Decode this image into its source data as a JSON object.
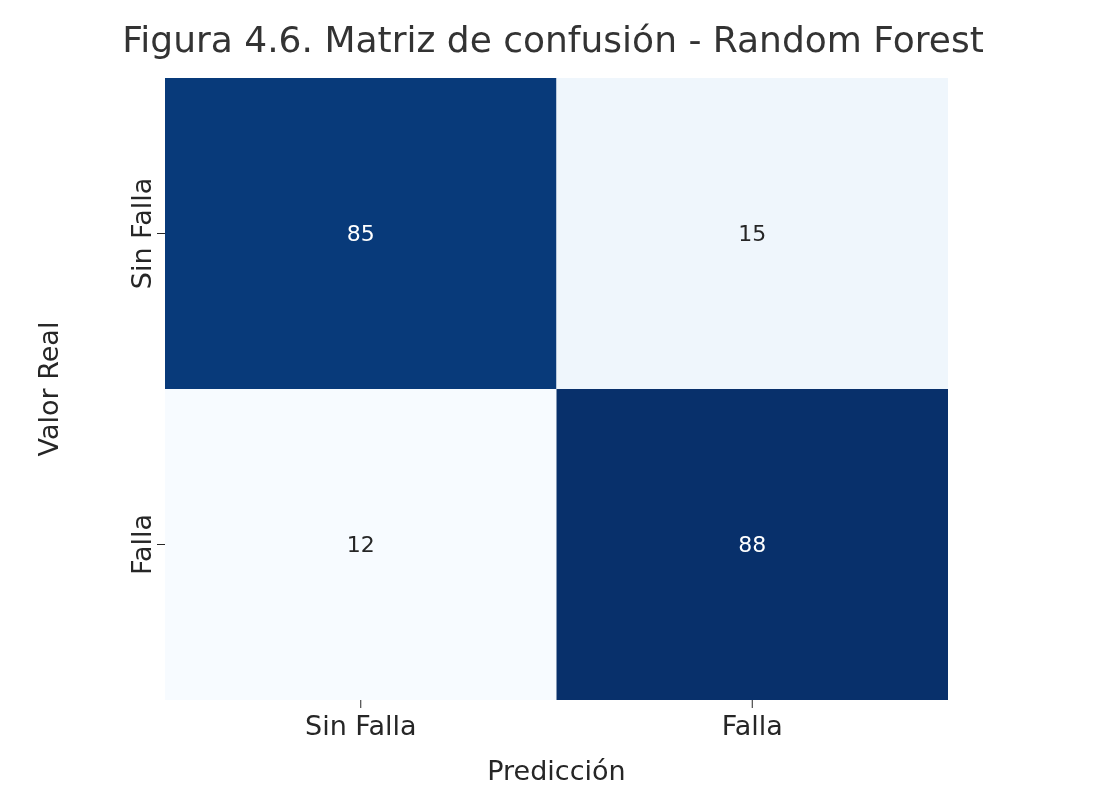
{
  "chart_data": {
    "type": "heatmap",
    "title": "Figura 4.6. Matriz de confusión - Random Forest",
    "xlabel": "Predicción",
    "ylabel": "Valor Real",
    "categories": [
      "Sin Falla",
      "Falla"
    ],
    "y_categories": [
      "Sin Falla",
      "Falla"
    ],
    "cells": [
      [
        85,
        15
      ],
      [
        12,
        88
      ]
    ],
    "data_labels": true
  }
}
